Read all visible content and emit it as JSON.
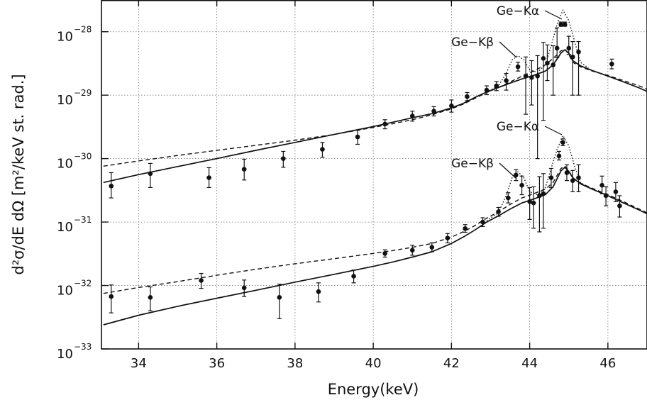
{
  "chart_data": {
    "type": "scatter",
    "title": "",
    "xlabel": "Energy(keV)",
    "ylabel": "d²σ/dE dΩ [m²/keV st. rad.]",
    "xlim": [
      33.05,
      47.0
    ],
    "ylim_log10": [
      -33,
      -27.5
    ],
    "scale_y": "log",
    "grid": "dotted",
    "x_ticks": [
      34,
      36,
      38,
      40,
      42,
      44,
      46
    ],
    "x_tick_labels": [
      "34",
      "36",
      "38",
      "40",
      "42",
      "44",
      "46"
    ],
    "y_ticks_log10": [
      -28,
      -29,
      -30,
      -31,
      -32,
      -33
    ],
    "y_tick_base": "10",
    "y_tick_exponents": [
      "−28",
      "−29",
      "−30",
      "−31",
      "−32",
      "−33"
    ],
    "annotations": [
      {
        "text": "Ge−Kα",
        "x": 44.85,
        "y_log10": -27.88
      },
      {
        "text": "Ge−Kβ",
        "x": 43.65,
        "y_log10": -28.58
      },
      {
        "text": "Ge−Kα",
        "x": 44.85,
        "y_log10": -29.9
      },
      {
        "text": "Ge−Kβ",
        "x": 43.65,
        "y_log10": -30.52
      }
    ],
    "series": [
      {
        "style": "solid",
        "x": [
          33.1,
          34,
          35,
          36,
          37,
          38,
          39,
          40,
          40.5,
          41,
          41.5,
          42,
          42.3,
          42.6,
          42.9,
          43.2,
          43.5,
          43.8,
          44.1,
          44.4,
          44.6,
          44.8,
          44.9,
          45.0,
          45.1,
          45.3,
          45.6,
          46.0,
          46.4,
          46.8,
          47.0
        ],
        "y": [
          4.2e-31,
          5.6e-31,
          7.5e-31,
          1e-30,
          1.35e-30,
          1.8e-30,
          2.4e-30,
          3.2e-30,
          3.75e-30,
          4.4e-30,
          5.1e-30,
          6.3e-30,
          7.4e-30,
          9.2e-30,
          1.12e-29,
          1.32e-29,
          1.55e-29,
          1.8e-29,
          2.05e-29,
          2.4e-29,
          3e-29,
          4.6e-29,
          5.2e-29,
          4.6e-29,
          3.5e-29,
          2.9e-29,
          2.45e-29,
          2e-29,
          1.62e-29,
          1.3e-29,
          1.15e-29
        ]
      },
      {
        "style": "dashed",
        "x": [
          33.1,
          34,
          35,
          36,
          37,
          38,
          39,
          40,
          40.5,
          41,
          41.5,
          42,
          42.3,
          42.6,
          42.9,
          43.2,
          43.5,
          43.8,
          44.1,
          44.4,
          44.6,
          44.8,
          44.9,
          45.0,
          45.1,
          45.3,
          45.6,
          46.0,
          46.4,
          46.8,
          47.0
        ],
        "y": [
          7.6e-31,
          9.2e-31,
          1.12e-30,
          1.35e-30,
          1.62e-30,
          1.95e-30,
          2.4e-30,
          3.1e-30,
          3.55e-30,
          4.1e-30,
          4.9e-30,
          6.1e-30,
          7.2e-30,
          8.9e-30,
          1.1e-29,
          1.32e-29,
          1.62e-29,
          1.98e-29,
          2.4e-29,
          3e-29,
          3.8e-29,
          5e-29,
          5.3e-29,
          4.4e-29,
          3.3e-29,
          2.8e-29,
          2.4e-29,
          2.05e-29,
          1.7e-29,
          1.4e-29,
          1.25e-29
        ]
      },
      {
        "style": "dotted",
        "x": [
          42.9,
          43.2,
          43.4,
          43.55,
          43.7,
          43.85,
          44.0,
          44.2,
          44.4,
          44.55,
          44.7,
          44.85,
          45.0,
          45.15,
          45.3,
          45.5
        ],
        "y": [
          1.12e-29,
          1.4e-29,
          2.2e-29,
          3.6e-29,
          4.2e-29,
          3.6e-29,
          2.5e-29,
          2.3e-29,
          3e-29,
          6e-29,
          1.3e-28,
          2.2e-28,
          1.5e-28,
          7e-29,
          3.3e-29,
          2.7e-29
        ]
      },
      {
        "style": "dots",
        "x": [
          33.3,
          34.3,
          35.8,
          36.7,
          37.7,
          38.7,
          39.6,
          40.3,
          41.0,
          41.55,
          42.0,
          42.4,
          42.9,
          43.15,
          43.4,
          43.7,
          43.9,
          44.05,
          44.2,
          44.35,
          44.45,
          44.6,
          44.7,
          44.8,
          44.9,
          45.0,
          45.1,
          45.25,
          46.1
        ],
        "y": [
          3.7e-31,
          5.8e-31,
          5e-31,
          6.8e-31,
          1e-30,
          1.4e-30,
          2.2e-30,
          3.5e-30,
          4.7e-30,
          5.6e-30,
          6.8e-30,
          9.5e-30,
          1.2e-29,
          1.4e-29,
          1.7e-29,
          2.8e-29,
          2e-29,
          1.9e-29,
          2e-29,
          3.8e-29,
          3.2e-29,
          3e-29,
          5.5e-29,
          1.3e-28,
          1.3e-28,
          5.5e-29,
          4e-29,
          4.8e-29,
          3.1e-29
        ],
        "err_lo": [
          1.3e-31,
          2.3e-31,
          1.5e-31,
          2.2e-31,
          2.7e-31,
          3.5e-31,
          5.2e-31,
          5.5e-31,
          8e-31,
          9e-31,
          1.4e-30,
          1.3e-30,
          1.8e-30,
          2.2e-30,
          5e-30,
          4e-30,
          1.5e-29,
          1.2e-29,
          1.9e-29,
          3.4e-29,
          1.5e-29,
          2e-29,
          1.6e-29,
          8e-30,
          8e-30,
          1.1e-29,
          3e-29,
          3.8e-29,
          5e-30
        ],
        "err_hi": [
          2.3e-31,
          2.6e-31,
          2.2e-31,
          3e-31,
          3e-31,
          4e-31,
          6e-31,
          6e-31,
          9e-31,
          1e-30,
          1.6e-30,
          1.5e-30,
          2e-30,
          2.4e-30,
          5e-30,
          5e-30,
          2e-29,
          1.6e-29,
          2.2e-29,
          3e-29,
          3e-29,
          3e-29,
          6e-29,
          1.2e-29,
          1.2e-29,
          3e-29,
          3e-29,
          2.2e-29,
          6e-30
        ]
      },
      {
        "style": "solid",
        "x": [
          33.1,
          34,
          35,
          36,
          37,
          38,
          39,
          40,
          40.5,
          41,
          41.5,
          42,
          42.3,
          42.6,
          42.9,
          43.2,
          43.5,
          43.8,
          44.1,
          44.4,
          44.6,
          44.8,
          44.9,
          45.0,
          45.1,
          45.3,
          45.6,
          46.0,
          46.4,
          46.8,
          47.0
        ],
        "y": [
          2.4e-33,
          3.4e-33,
          4.7e-33,
          6.3e-33,
          8.4e-33,
          1.13e-32,
          1.5e-32,
          2e-32,
          2.35e-32,
          2.8e-32,
          3.4e-32,
          4.6e-32,
          5.8e-32,
          7.5e-32,
          1e-31,
          1.25e-31,
          1.6e-31,
          2e-31,
          2.3e-31,
          2.7e-31,
          3.6e-31,
          6.4e-31,
          7.3e-31,
          6.3e-31,
          5e-31,
          4e-31,
          3.3e-31,
          2.6e-31,
          2e-31,
          1.55e-31,
          1.35e-31
        ]
      },
      {
        "style": "dashed",
        "x": [
          33.1,
          34,
          35,
          36,
          37,
          38,
          39,
          40,
          40.5,
          41,
          41.5,
          42,
          42.3,
          42.6,
          42.9,
          43.2,
          43.5,
          43.8,
          44.1,
          44.4,
          44.6,
          44.8,
          44.9,
          45.0,
          45.1,
          45.3,
          45.6,
          46.0,
          46.4,
          46.8,
          47.0
        ],
        "y": [
          7.5e-33,
          9.3e-33,
          1.15e-32,
          1.45e-32,
          1.8e-32,
          2.2e-32,
          2.65e-32,
          3.2e-32,
          3.55e-32,
          4e-32,
          4.6e-32,
          5.8e-32,
          7e-32,
          8.8e-32,
          1.15e-31,
          1.45e-31,
          1.9e-31,
          2.4e-31,
          2.8e-31,
          3.3e-31,
          4.2e-31,
          7e-31,
          7.6e-31,
          6.5e-31,
          5e-31,
          4.1e-31,
          3.4e-31,
          2.7e-31,
          2.1e-31,
          1.6e-31,
          1.4e-31
        ]
      },
      {
        "style": "dotted",
        "x": [
          42.9,
          43.2,
          43.4,
          43.55,
          43.7,
          43.85,
          44.0,
          44.2,
          44.4,
          44.55,
          44.7,
          44.85,
          45.0,
          45.15,
          45.3,
          45.5
        ],
        "y": [
          1.05e-31,
          1.4e-31,
          2.6e-31,
          5e-31,
          6.2e-31,
          5e-31,
          3e-31,
          2.7e-31,
          3.5e-31,
          7e-31,
          1.4e-30,
          2.3e-30,
          1.6e-30,
          7.5e-31,
          4.2e-31,
          3.5e-31
        ]
      },
      {
        "style": "dots",
        "x": [
          33.3,
          34.3,
          35.6,
          36.7,
          37.6,
          38.6,
          39.5,
          40.3,
          41.0,
          41.5,
          41.9,
          42.35,
          42.8,
          43.2,
          43.45,
          43.65,
          43.8,
          44.0,
          44.1,
          44.25,
          44.35,
          44.55,
          44.75,
          44.85,
          44.95,
          45.1,
          45.25,
          45.85,
          45.95,
          46.2,
          46.3
        ],
        "y": [
          6.7e-33,
          6.5e-33,
          1.2e-32,
          9.2e-33,
          6.5e-33,
          8e-33,
          1.4e-32,
          3.2e-32,
          3.6e-32,
          4e-32,
          5.6e-32,
          7.9e-32,
          1e-31,
          1.45e-31,
          2.4e-31,
          5.5e-31,
          3.8e-31,
          2.1e-31,
          2e-31,
          2.6e-31,
          2.8e-31,
          5e-31,
          1.1e-30,
          1.8e-30,
          6e-31,
          4.5e-31,
          5e-31,
          3.8e-31,
          2.6e-31,
          3e-31,
          1.8e-31
        ],
        "err_lo": [
          3e-33,
          2.5e-33,
          3e-33,
          2.5e-33,
          3.5e-33,
          2.5e-33,
          3e-33,
          4e-33,
          6e-33,
          6e-33,
          9e-33,
          1e-32,
          1.5e-32,
          2.2e-32,
          4e-32,
          1e-31,
          1.1e-31,
          1e-31,
          1.2e-31,
          1.9e-31,
          2e-31,
          1.5e-31,
          1.5e-31,
          2e-31,
          1.5e-31,
          1.5e-31,
          2e-31,
          1e-31,
          8e-32,
          9e-32,
          6e-32
        ],
        "err_hi": [
          3.5e-33,
          3e-33,
          3.5e-33,
          3e-33,
          4e-33,
          3e-33,
          3.5e-33,
          4.5e-33,
          7e-33,
          7e-33,
          1e-32,
          1.2e-32,
          1.7e-32,
          2.5e-32,
          5e-32,
          1.2e-31,
          1.5e-31,
          1.4e-31,
          1.6e-31,
          2.6e-31,
          3e-31,
          2e-31,
          2e-31,
          2.5e-31,
          2e-31,
          2e-31,
          3e-31,
          1.5e-31,
          1e-31,
          1.2e-31,
          8e-32
        ]
      }
    ]
  }
}
